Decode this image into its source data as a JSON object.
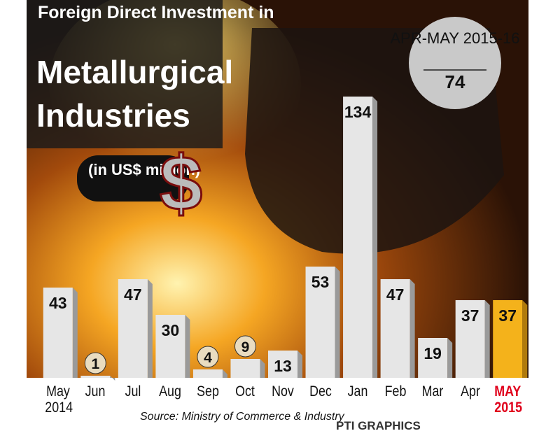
{
  "title_line1": "Foreign Direct Investment in",
  "title_line2": "Metallurgical Industries",
  "unit": "(in US$ million)",
  "badge": {
    "label": "APR-MAY 2015-16",
    "value": 74
  },
  "source": "Source: Ministry of Commerce & Industry",
  "logo": "PTI GRAPHICS",
  "chart_data": {
    "type": "bar",
    "categories": [
      "May 2014",
      "Jun",
      "Jul",
      "Aug",
      "Sep",
      "Oct",
      "Nov",
      "Dec",
      "Jan",
      "Feb",
      "Mar",
      "Apr",
      "MAY 2015"
    ],
    "values": [
      43,
      1,
      47,
      30,
      4,
      9,
      13,
      53,
      134,
      47,
      19,
      37,
      37
    ],
    "colors": [
      "#e6e6e6",
      "#e6e6e6",
      "#e6e6e6",
      "#e6e6e6",
      "#e6e6e6",
      "#e6e6e6",
      "#e6e6e6",
      "#e6e6e6",
      "#e6e6e6",
      "#e6e6e6",
      "#e6e6e6",
      "#e6e6e6",
      "#f4b21b"
    ]
  }
}
